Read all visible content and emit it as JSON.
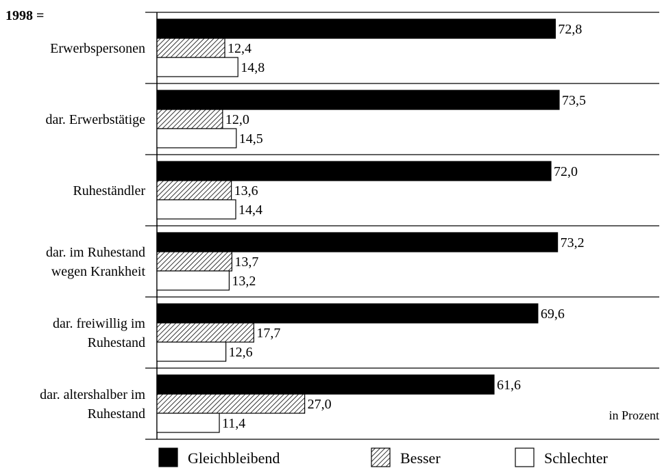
{
  "chart_data": {
    "type": "bar",
    "orientation": "horizontal",
    "title": "1998 =",
    "unit_note": "in Prozent",
    "categories": [
      [
        "Erwerbspersonen"
      ],
      [
        "dar. Erwerbstätige"
      ],
      [
        "Ruheständler"
      ],
      [
        "dar. im Ruhestand",
        "wegen Krankheit"
      ],
      [
        "dar. freiwillig im",
        "Ruhestand"
      ],
      [
        "dar. altershalber im",
        "Ruhestand"
      ]
    ],
    "series": [
      {
        "name": "Gleichbleibend",
        "pattern": "solid",
        "values": [
          72.8,
          73.5,
          72.0,
          73.2,
          69.6,
          61.6
        ],
        "labels": [
          "72,8",
          "73,5",
          "72,0",
          "73,2",
          "69,6",
          "61,6"
        ]
      },
      {
        "name": "Besser",
        "pattern": "hatched",
        "values": [
          12.4,
          12.0,
          13.6,
          13.7,
          17.7,
          27.0
        ],
        "labels": [
          "12,4",
          "12,0",
          "13,6",
          "13,7",
          "17,7",
          "27,0"
        ]
      },
      {
        "name": "Schlechter",
        "pattern": "empty",
        "values": [
          14.8,
          14.5,
          14.4,
          13.2,
          12.6,
          11.4
        ],
        "labels": [
          "14,8",
          "14,5",
          "14,4",
          "13,2",
          "12,6",
          "11,4"
        ]
      }
    ],
    "xlim": [
      0,
      73.5
    ],
    "grid": false,
    "legend_position": "bottom",
    "colors": {
      "bar_fill": "#000000",
      "bar_stroke": "#000000",
      "background": "#ffffff"
    }
  }
}
